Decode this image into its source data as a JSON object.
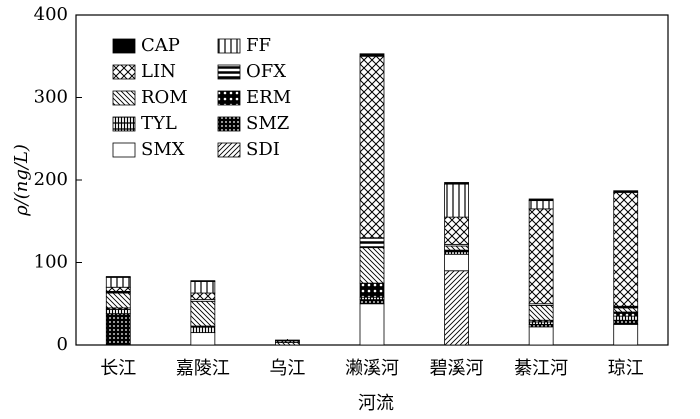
{
  "chart_data": {
    "type": "stacked_bar",
    "y_label": "ρ/(ng/L)",
    "x_label": "河流",
    "categories": [
      "长江",
      "嘉陵江",
      "乌江",
      "濑溪河",
      "碧溪河",
      "綦江河",
      "琼江"
    ],
    "ylim": [
      0,
      400
    ],
    "yticks": [
      0,
      100,
      200,
      300,
      400
    ],
    "legend_order": [
      9,
      8,
      7,
      6,
      5,
      4,
      3,
      2,
      1,
      0
    ],
    "series": [
      {
        "name": "SDI",
        "pattern": "sdi",
        "values": [
          0,
          0,
          0,
          0,
          90,
          0,
          0
        ]
      },
      {
        "name": "SMX",
        "pattern": "smx",
        "values": [
          0,
          15,
          0,
          50,
          20,
          22,
          25
        ]
      },
      {
        "name": "SMZ",
        "pattern": "smz",
        "values": [
          38,
          0,
          0,
          5,
          0,
          3,
          5
        ]
      },
      {
        "name": "TYL",
        "pattern": "tyl",
        "values": [
          5,
          8,
          0,
          3,
          3,
          3,
          5
        ]
      },
      {
        "name": "ERM",
        "pattern": "erm",
        "values": [
          2,
          0,
          0,
          17,
          2,
          2,
          5
        ]
      },
      {
        "name": "ROM",
        "pattern": "rom",
        "values": [
          18,
          30,
          3,
          43,
          5,
          18,
          5
        ]
      },
      {
        "name": "OFX",
        "pattern": "ofx",
        "values": [
          2,
          2,
          0,
          12,
          2,
          2,
          2
        ]
      },
      {
        "name": "LIN",
        "pattern": "lin",
        "values": [
          5,
          8,
          2,
          220,
          33,
          115,
          138
        ]
      },
      {
        "name": "FF",
        "pattern": "ff",
        "values": [
          12,
          14,
          0,
          0,
          40,
          10,
          0
        ]
      },
      {
        "name": "CAP",
        "pattern": "cap",
        "values": [
          1,
          1,
          1,
          3,
          2,
          2,
          2
        ]
      }
    ]
  }
}
